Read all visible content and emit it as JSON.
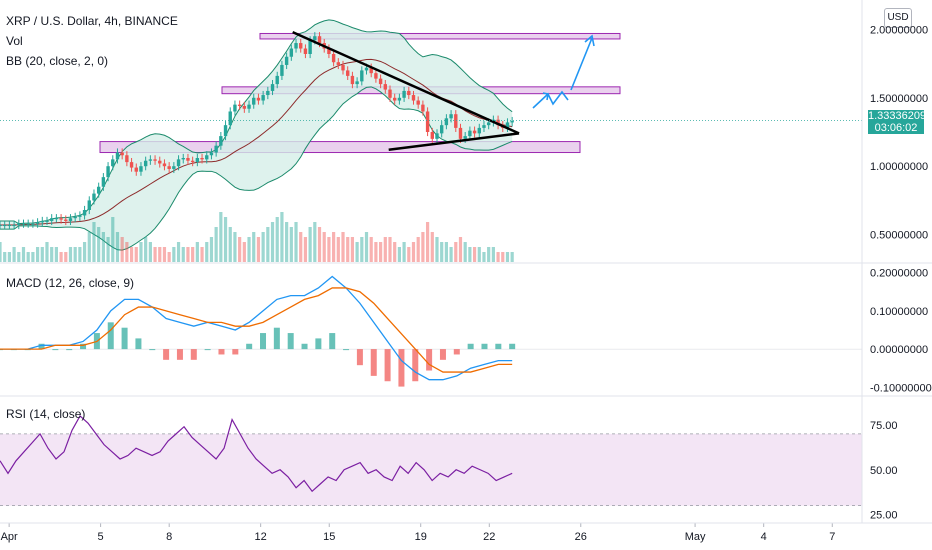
{
  "header": {
    "title": "XRP / U.S. Dollar, 4h, BINANCE",
    "vol": "Vol",
    "bb": "BB (20, close, 2, 0)",
    "currency_button": "USD"
  },
  "panes": {
    "macd_label": "MACD (12, 26, close, 9)",
    "rsi_label": "RSI (14, close)"
  },
  "price_tag": {
    "price": "1.33336209",
    "countdown": "03:06:02",
    "color": "#26a69a"
  },
  "colors": {
    "up": "#26a69a",
    "down": "#ef5350",
    "bb_fill": "#d6efe9",
    "bb_line": "#1b8a6b",
    "bb_basis": "#8d2b2b",
    "macd": "#2196f3",
    "signal": "#ef6c00",
    "rsi_line": "#7b1fa2",
    "rsi_band": "#f3e5f5",
    "zone": "#e1bee7",
    "zone_border": "#9c27b0",
    "arrow": "#2196f3"
  },
  "chart_data": [
    {
      "type": "candlestick",
      "title": "XRP / U.S. Dollar, 4h, BINANCE",
      "price_axis": [
        "2.00000000",
        "1.50000000",
        "1.00000000",
        "0.50000000"
      ],
      "ylim": [
        0.3,
        2.2
      ],
      "x_ticks": [
        "Apr",
        "5",
        "8",
        "12",
        "15",
        "19",
        "22",
        "26",
        "May",
        "4",
        "7"
      ],
      "x_tick_days": [
        1,
        5,
        8,
        12,
        15,
        19,
        22,
        26,
        31,
        34,
        37
      ],
      "xlim_days": [
        0.6,
        38.3
      ],
      "last_price": 1.33336209,
      "close_series": [
        0.57,
        0.57,
        0.57,
        0.57,
        0.58,
        0.58,
        0.58,
        0.58,
        0.59,
        0.6,
        0.6,
        0.62,
        0.62,
        0.61,
        0.6,
        0.62,
        0.63,
        0.64,
        0.68,
        0.75,
        0.8,
        0.85,
        0.92,
        1.0,
        1.05,
        1.1,
        1.08,
        1.03,
        0.99,
        0.96,
        1.0,
        1.04,
        1.05,
        1.04,
        1.02,
        1.0,
        0.98,
        1.0,
        1.05,
        1.06,
        1.04,
        1.03,
        1.06,
        1.05,
        1.08,
        1.1,
        1.15,
        1.22,
        1.3,
        1.4,
        1.45,
        1.44,
        1.42,
        1.45,
        1.5,
        1.48,
        1.52,
        1.55,
        1.6,
        1.66,
        1.74,
        1.8,
        1.86,
        1.9,
        1.86,
        1.82,
        1.92,
        1.95,
        1.9,
        1.86,
        1.82,
        1.76,
        1.74,
        1.7,
        1.66,
        1.6,
        1.62,
        1.7,
        1.72,
        1.68,
        1.64,
        1.6,
        1.56,
        1.5,
        1.48,
        1.5,
        1.55,
        1.52,
        1.48,
        1.45,
        1.4,
        1.25,
        1.2,
        1.24,
        1.3,
        1.35,
        1.38,
        1.28,
        1.2,
        1.22,
        1.26,
        1.24,
        1.28,
        1.3,
        1.32,
        1.34,
        1.3,
        1.28,
        1.32,
        1.33
      ],
      "bollinger": {
        "period": 20,
        "stddev": 2
      },
      "volume": [
        0.4,
        0.2,
        0.2,
        0.3,
        0.2,
        0.3,
        0.2,
        0.2,
        0.3,
        0.3,
        0.4,
        0.3,
        0.3,
        0.2,
        0.2,
        0.3,
        0.3,
        0.3,
        0.4,
        0.6,
        0.8,
        0.7,
        0.6,
        0.5,
        0.9,
        0.6,
        0.5,
        0.4,
        0.3,
        0.3,
        0.4,
        0.5,
        0.4,
        0.3,
        0.3,
        0.3,
        0.2,
        0.3,
        0.4,
        0.3,
        0.3,
        0.3,
        0.4,
        0.3,
        0.4,
        0.5,
        0.7,
        1.0,
        0.9,
        0.7,
        0.6,
        0.5,
        0.4,
        0.5,
        0.6,
        0.5,
        0.6,
        0.7,
        0.8,
        0.9,
        1.0,
        0.8,
        0.7,
        0.8,
        0.6,
        0.5,
        0.7,
        0.8,
        0.7,
        0.6,
        0.5,
        0.6,
        0.5,
        0.6,
        0.5,
        0.5,
        0.4,
        0.5,
        0.6,
        0.5,
        0.4,
        0.4,
        0.5,
        0.5,
        0.4,
        0.3,
        0.4,
        0.3,
        0.4,
        0.5,
        0.6,
        0.8,
        0.6,
        0.5,
        0.4,
        0.4,
        0.3,
        0.4,
        0.5,
        0.4,
        0.3,
        0.3,
        0.3,
        0.2,
        0.3,
        0.3,
        0.2,
        0.2,
        0.2,
        0.2
      ],
      "zones": [
        [
          1.93,
          1.97
        ],
        [
          1.53,
          1.58
        ],
        [
          1.1,
          1.18
        ]
      ],
      "triangle": {
        "upper": [
          [
            13.4,
            1.98
          ],
          [
            23.3,
            1.24
          ]
        ],
        "lower": [
          [
            17.6,
            1.12
          ],
          [
            23.3,
            1.24
          ]
        ]
      }
    },
    {
      "type": "line",
      "title": "MACD (12, 26, close, 9)",
      "y_axis": [
        "0.20000000",
        "0.10000000",
        "0.00000000",
        "-0.10000000"
      ],
      "ylim": [
        -0.12,
        0.22
      ],
      "series": [
        {
          "values": [
            0.0,
            0.0,
            0.0,
            0.01,
            0.01,
            0.01,
            0.02,
            0.05,
            0.1,
            0.13,
            0.13,
            0.11,
            0.08,
            0.07,
            0.06,
            0.07,
            0.06,
            0.05,
            0.07,
            0.1,
            0.13,
            0.14,
            0.14,
            0.16,
            0.19,
            0.16,
            0.12,
            0.07,
            0.02,
            -0.03,
            -0.06,
            -0.08,
            -0.08,
            -0.07,
            -0.05,
            -0.04,
            -0.03,
            -0.03
          ]
        },
        {
          "values": [
            0.0,
            0.0,
            0.0,
            0.0,
            0.01,
            0.01,
            0.01,
            0.02,
            0.05,
            0.09,
            0.11,
            0.11,
            0.1,
            0.09,
            0.08,
            0.07,
            0.07,
            0.06,
            0.06,
            0.07,
            0.09,
            0.11,
            0.13,
            0.14,
            0.16,
            0.16,
            0.15,
            0.12,
            0.08,
            0.04,
            0.0,
            -0.04,
            -0.06,
            -0.06,
            -0.06,
            -0.05,
            -0.04,
            -0.04
          ]
        }
      ]
    },
    {
      "type": "line",
      "title": "RSI (14, close)",
      "y_axis": [
        "75.00",
        "50.00",
        "25.00"
      ],
      "ylim": [
        22,
        90
      ],
      "band": [
        30,
        70
      ],
      "series": [
        {
          "values": [
            55,
            48,
            55,
            60,
            65,
            70,
            62,
            56,
            60,
            72,
            80,
            76,
            70,
            64,
            60,
            56,
            58,
            62,
            60,
            58,
            60,
            66,
            70,
            74,
            68,
            64,
            60,
            56,
            62,
            78,
            70,
            62,
            56,
            52,
            48,
            50,
            46,
            40,
            44,
            38,
            42,
            46,
            44,
            50,
            52,
            54,
            48,
            50,
            46,
            44,
            52,
            48,
            54,
            50,
            44,
            48,
            46,
            50,
            48,
            52,
            50,
            48,
            44,
            46,
            48
          ]
        }
      ]
    }
  ]
}
